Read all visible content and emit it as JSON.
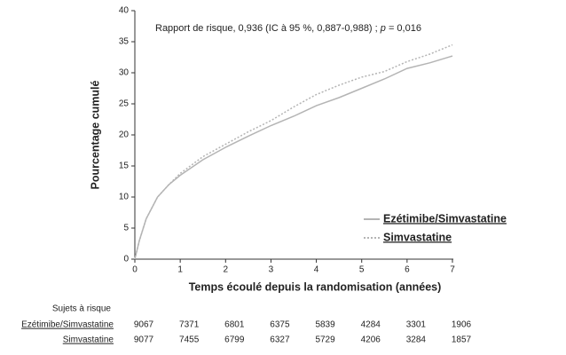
{
  "chart_data": {
    "type": "line",
    "annotation": [
      "Rapport de risque, 0,936 (IC à 95 %, 0,887-0,988) ; ",
      "p",
      " = 0,016"
    ],
    "x_label": "Temps écoulé depuis la randomisation (années)",
    "y_label": "Pourcentage cumulé",
    "x": [
      0,
      0.1,
      0.25,
      0.5,
      0.75,
      1,
      1.5,
      2,
      2.5,
      3,
      3.5,
      4,
      4.5,
      5,
      5.5,
      6,
      6.5,
      7
    ],
    "series": [
      {
        "name": "Ezétimibe/Simvastatine",
        "color": "#b4b4b4",
        "dash": false,
        "values": [
          0,
          3,
          6.5,
          10,
          12,
          13.5,
          16,
          18,
          19.8,
          21.5,
          23,
          24.7,
          26,
          27.5,
          29,
          30.7,
          31.6,
          32.7
        ]
      },
      {
        "name": "Simvastatine",
        "color": "#b4b4b4",
        "dash": true,
        "values": [
          0,
          3,
          6.5,
          10,
          12,
          13.8,
          16.5,
          18.5,
          20.5,
          22.3,
          24.5,
          26.5,
          28,
          29.3,
          30.2,
          31.8,
          33,
          34.5
        ]
      }
    ],
    "xlim": [
      0,
      7
    ],
    "xticks": [
      0,
      1,
      2,
      3,
      4,
      5,
      6,
      7
    ],
    "ylim": [
      0,
      40
    ],
    "yticks": [
      0,
      5,
      10,
      15,
      20,
      25,
      30,
      35,
      40
    ],
    "grid": false,
    "legend": "lower-right",
    "risk_table": {
      "title": "Sujets à risque",
      "rows": [
        {
          "name": "Ezétimibe/Simvastatine",
          "values": [
            9067,
            7371,
            6801,
            6375,
            5839,
            4284,
            3301,
            1906
          ]
        },
        {
          "name": "Simvastatine",
          "values": [
            9077,
            7455,
            6799,
            6327,
            5729,
            4206,
            3284,
            1857
          ]
        }
      ]
    }
  }
}
